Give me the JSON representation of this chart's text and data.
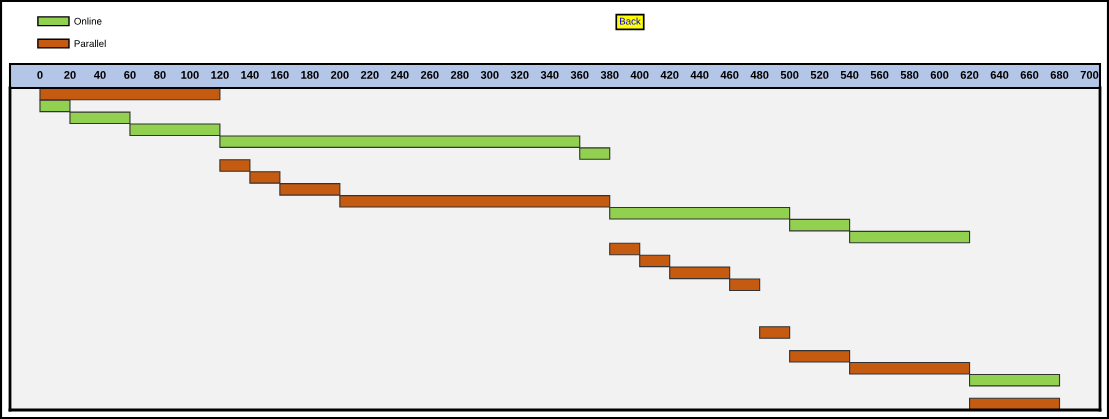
{
  "chart_data": {
    "type": "bar",
    "orientation": "horizontal",
    "categories": [
      null,
      null,
      null,
      null,
      null,
      null,
      null,
      null,
      null,
      null,
      null,
      null,
      null,
      null,
      null,
      null,
      null,
      null,
      null,
      null,
      null,
      null,
      null,
      null,
      null,
      null,
      null
    ],
    "series": [
      {
        "name": "Online",
        "color": "#92d050",
        "values": [
          null,
          20,
          40,
          60,
          240,
          20,
          null,
          null,
          null,
          null,
          120,
          40,
          80,
          null,
          null,
          null,
          null,
          null,
          null,
          null,
          null,
          null,
          null,
          null,
          60,
          null,
          null
        ],
        "base": [
          null,
          0,
          20,
          60,
          120,
          360,
          null,
          null,
          null,
          null,
          380,
          500,
          540,
          null,
          null,
          null,
          null,
          null,
          null,
          null,
          null,
          null,
          null,
          null,
          620,
          null,
          null
        ]
      },
      {
        "name": "Parallel",
        "color": "#c55a11",
        "values": [
          120,
          null,
          null,
          null,
          null,
          null,
          20,
          20,
          40,
          180,
          null,
          null,
          null,
          20,
          20,
          40,
          20,
          null,
          null,
          null,
          20,
          null,
          40,
          80,
          null,
          null,
          60
        ],
        "base": [
          0,
          null,
          null,
          null,
          null,
          null,
          120,
          140,
          160,
          200,
          null,
          null,
          null,
          380,
          400,
          420,
          460,
          null,
          null,
          null,
          480,
          null,
          500,
          540,
          null,
          null,
          620
        ]
      }
    ],
    "xlim": [
      -20,
      707
    ],
    "xticks": [
      0,
      20,
      40,
      60,
      80,
      100,
      120,
      140,
      160,
      180,
      200,
      220,
      240,
      260,
      280,
      300,
      320,
      340,
      360,
      380,
      400,
      420,
      440,
      460,
      480,
      500,
      520,
      540,
      560,
      580,
      600,
      620,
      640,
      660,
      680,
      700
    ],
    "tick_labels": "x",
    "legend": "top left",
    "annotations": [
      "Back"
    ]
  }
}
